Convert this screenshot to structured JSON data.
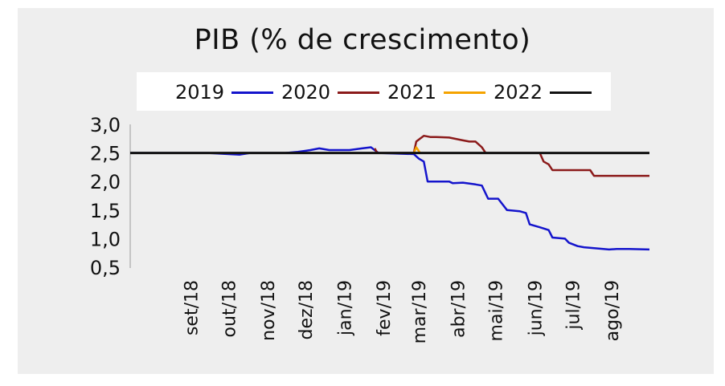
{
  "chart_data": {
    "type": "line",
    "title": "PIB (% de crescimento)",
    "ylim": [
      0.5,
      3.0
    ],
    "yticks": [
      "3,0",
      "2,5",
      "2,0",
      "1,5",
      "1,0",
      "0,5"
    ],
    "ytick_values": [
      3.0,
      2.5,
      2.0,
      1.5,
      1.0,
      0.5
    ],
    "xlim": [
      "2018-07-15",
      "2019-08-31"
    ],
    "xticks": [
      {
        "label": "set/18",
        "date": "2018-09-01"
      },
      {
        "label": "out/18",
        "date": "2018-10-01"
      },
      {
        "label": "nov/18",
        "date": "2018-11-01"
      },
      {
        "label": "dez/18",
        "date": "2018-12-01"
      },
      {
        "label": "jan/19",
        "date": "2019-01-01"
      },
      {
        "label": "fev/19",
        "date": "2019-02-01"
      },
      {
        "label": "mar/19",
        "date": "2019-03-01"
      },
      {
        "label": "abr/19",
        "date": "2019-04-01"
      },
      {
        "label": "mai/19",
        "date": "2019-05-01"
      },
      {
        "label": "jun/19",
        "date": "2019-06-01"
      },
      {
        "label": "jul/19",
        "date": "2019-07-01"
      },
      {
        "label": "ago/19",
        "date": "2019-08-01"
      }
    ],
    "legend": "top",
    "grid": false,
    "series": [
      {
        "name": "2019",
        "color": "#1414cc",
        "points": [
          [
            "2018-07-15",
            2.5
          ],
          [
            "2018-09-15",
            2.5
          ],
          [
            "2018-10-01",
            2.48
          ],
          [
            "2018-10-10",
            2.47
          ],
          [
            "2018-10-18",
            2.5
          ],
          [
            "2018-11-15",
            2.5
          ],
          [
            "2018-11-25",
            2.52
          ],
          [
            "2018-12-05",
            2.55
          ],
          [
            "2018-12-12",
            2.58
          ],
          [
            "2018-12-20",
            2.55
          ],
          [
            "2018-12-28",
            2.55
          ],
          [
            "2019-01-05",
            2.55
          ],
          [
            "2019-01-15",
            2.58
          ],
          [
            "2019-01-22",
            2.6
          ],
          [
            "2019-01-28",
            2.5
          ],
          [
            "2019-02-25",
            2.48
          ],
          [
            "2019-03-01",
            2.4
          ],
          [
            "2019-03-05",
            2.35
          ],
          [
            "2019-03-08",
            2.0
          ],
          [
            "2019-03-25",
            2.0
          ],
          [
            "2019-03-28",
            1.97
          ],
          [
            "2019-04-05",
            1.98
          ],
          [
            "2019-04-15",
            1.95
          ],
          [
            "2019-04-20",
            1.93
          ],
          [
            "2019-04-25",
            1.7
          ],
          [
            "2019-05-03",
            1.7
          ],
          [
            "2019-05-10",
            1.5
          ],
          [
            "2019-05-20",
            1.48
          ],
          [
            "2019-05-25",
            1.45
          ],
          [
            "2019-05-28",
            1.25
          ],
          [
            "2019-06-05",
            1.2
          ],
          [
            "2019-06-12",
            1.15
          ],
          [
            "2019-06-15",
            1.02
          ],
          [
            "2019-06-25",
            1.0
          ],
          [
            "2019-06-28",
            0.93
          ],
          [
            "2019-07-05",
            0.87
          ],
          [
            "2019-07-10",
            0.85
          ],
          [
            "2019-07-20",
            0.83
          ],
          [
            "2019-07-30",
            0.81
          ],
          [
            "2019-08-05",
            0.82
          ],
          [
            "2019-08-15",
            0.82
          ],
          [
            "2019-08-31",
            0.81
          ]
        ]
      },
      {
        "name": "2020",
        "color": "#8b1a1a",
        "points": [
          [
            "2019-01-25",
            2.58
          ],
          [
            "2019-01-27",
            2.5
          ],
          [
            "2019-02-25",
            2.5
          ],
          [
            "2019-02-27",
            2.7
          ],
          [
            "2019-03-02",
            2.75
          ],
          [
            "2019-03-05",
            2.8
          ],
          [
            "2019-03-10",
            2.78
          ],
          [
            "2019-03-15",
            2.78
          ],
          [
            "2019-03-25",
            2.77
          ],
          [
            "2019-04-05",
            2.72
          ],
          [
            "2019-04-10",
            2.7
          ],
          [
            "2019-04-15",
            2.7
          ],
          [
            "2019-04-20",
            2.6
          ],
          [
            "2019-04-23",
            2.5
          ],
          [
            "2019-06-05",
            2.5
          ],
          [
            "2019-06-08",
            2.35
          ],
          [
            "2019-06-12",
            2.3
          ],
          [
            "2019-06-15",
            2.2
          ],
          [
            "2019-06-25",
            2.2
          ],
          [
            "2019-07-10",
            2.2
          ],
          [
            "2019-07-15",
            2.2
          ],
          [
            "2019-07-18",
            2.1
          ],
          [
            "2019-08-31",
            2.1
          ]
        ]
      },
      {
        "name": "2021",
        "color": "#f5a300",
        "points": [
          [
            "2019-02-25",
            2.5
          ],
          [
            "2019-02-27",
            2.6
          ],
          [
            "2019-03-02",
            2.5
          ]
        ]
      },
      {
        "name": "2022",
        "color": "#111111",
        "points": [
          [
            "2018-07-15",
            2.5
          ],
          [
            "2019-08-31",
            2.5
          ]
        ]
      }
    ]
  }
}
